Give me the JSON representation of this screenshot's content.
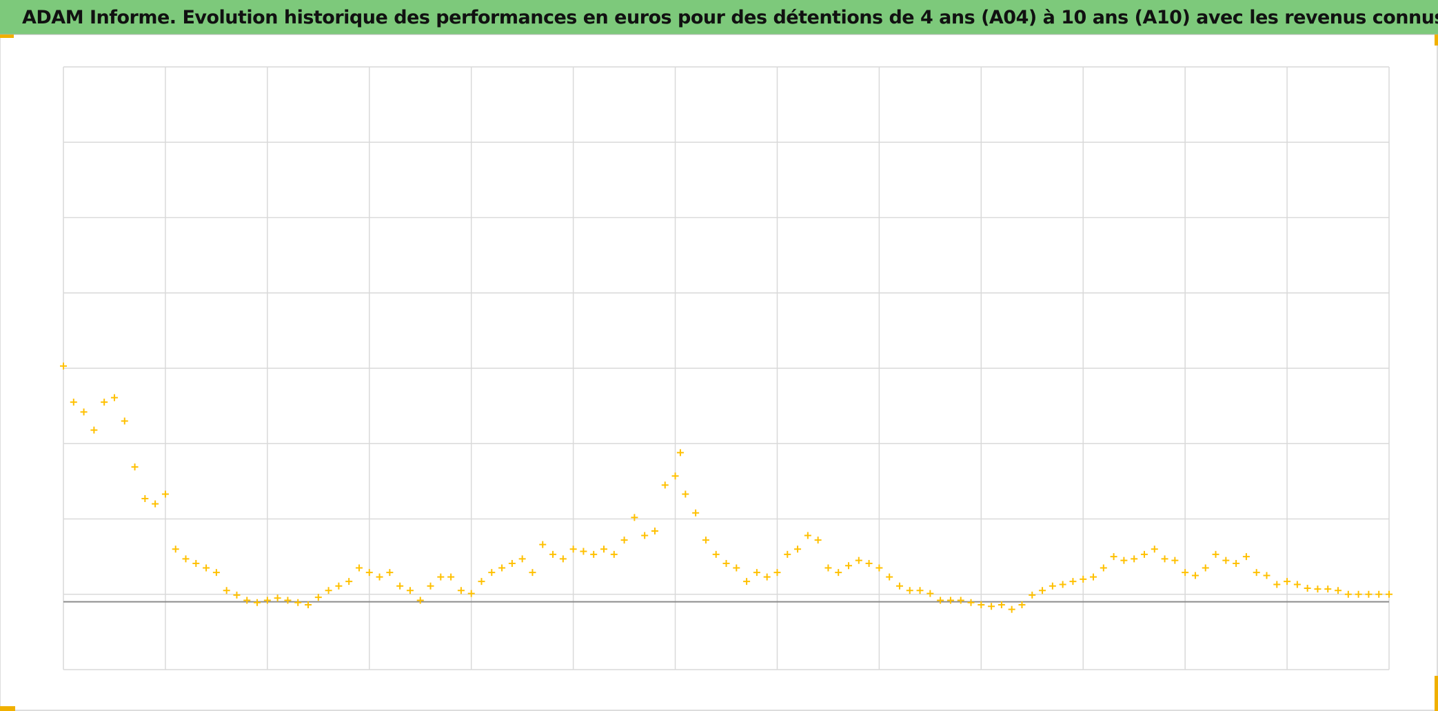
{
  "chart_data": {
    "type": "scatter",
    "title": "ADAM Informe. Evolution historique des performances en euros pour des détentions de 4 ans (A04) à 10 ans (A10) avec les revenus connus distribués",
    "series": [
      {
        "color": "#ffc000",
        "x": [
          0,
          0.1,
          0.2,
          0.3,
          0.4,
          0.5,
          0.6,
          0.7,
          0.8,
          0.9,
          1.0,
          1.1,
          1.2,
          1.3,
          1.4,
          1.5,
          1.6,
          1.7,
          1.8,
          1.9,
          2.0,
          2.1,
          2.2,
          2.3,
          2.4,
          2.5,
          2.6,
          2.7,
          2.8,
          2.9,
          3.0,
          3.1,
          3.2,
          3.3,
          3.4,
          3.5,
          3.6,
          3.7,
          3.8,
          3.9,
          4.0,
          4.1,
          4.2,
          4.3,
          4.4,
          4.5,
          4.6,
          4.7,
          4.8,
          4.9,
          5.0,
          5.1,
          5.2,
          5.3,
          5.4,
          5.5,
          5.6,
          5.7,
          5.8,
          5.9,
          6.0,
          6.05,
          6.1,
          6.2,
          6.3,
          6.4,
          6.5,
          6.6,
          6.7,
          6.8,
          6.9,
          7.0,
          7.1,
          7.2,
          7.3,
          7.4,
          7.5,
          7.6,
          7.7,
          7.8,
          7.9,
          8.0,
          8.1,
          8.2,
          8.3,
          8.4,
          8.5,
          8.6,
          8.7,
          8.8,
          8.9,
          9.0,
          9.1,
          9.2,
          9.3,
          9.4,
          9.5,
          9.6,
          9.7,
          9.8,
          9.9,
          10.0,
          10.1,
          10.2,
          10.3,
          10.4,
          10.5,
          10.6,
          10.7,
          10.8,
          10.9,
          11.0,
          11.1,
          11.2,
          11.3,
          11.4,
          11.5,
          11.6,
          11.7,
          11.8,
          11.9,
          12.0,
          12.1,
          12.2,
          12.3,
          12.4,
          12.5,
          12.6,
          12.7,
          12.8,
          12.9,
          13.0
        ],
        "values": [
          313,
          265,
          252,
          228,
          265,
          271,
          240,
          179,
          137,
          130,
          143,
          70,
          57,
          51,
          45,
          39,
          15,
          9,
          2,
          -1,
          2,
          5,
          2,
          -1,
          -4,
          6,
          15,
          21,
          27,
          45,
          39,
          33,
          39,
          21,
          15,
          2,
          21,
          33,
          33,
          15,
          11,
          27,
          39,
          45,
          51,
          57,
          39,
          76,
          63,
          57,
          70,
          67,
          63,
          70,
          63,
          82,
          112,
          88,
          94,
          155,
          167,
          198,
          143,
          118,
          82,
          63,
          51,
          45,
          27,
          39,
          33,
          39,
          63,
          70,
          88,
          82,
          45,
          39,
          48,
          55,
          51,
          45,
          33,
          21,
          15,
          15,
          11,
          2,
          2,
          2,
          -1,
          -4,
          -6,
          -4,
          -10,
          -4,
          9,
          15,
          21,
          23,
          27,
          30,
          33,
          45,
          60,
          55,
          57,
          63,
          70,
          57,
          55,
          39,
          35,
          45,
          63,
          55,
          51,
          60,
          39,
          35,
          23,
          27,
          23,
          18,
          17,
          17,
          15,
          10,
          10,
          10,
          10,
          10
        ]
      }
    ],
    "xlim": [
      0,
      13
    ],
    "xticks": [
      0,
      1,
      2,
      3,
      4,
      5,
      6,
      7,
      8,
      9,
      10,
      11,
      12,
      13
    ],
    "ylim": [
      -90,
      710
    ],
    "yticks": [
      -90,
      10,
      110,
      210,
      310,
      410,
      510,
      610,
      710
    ],
    "grid": true
  }
}
